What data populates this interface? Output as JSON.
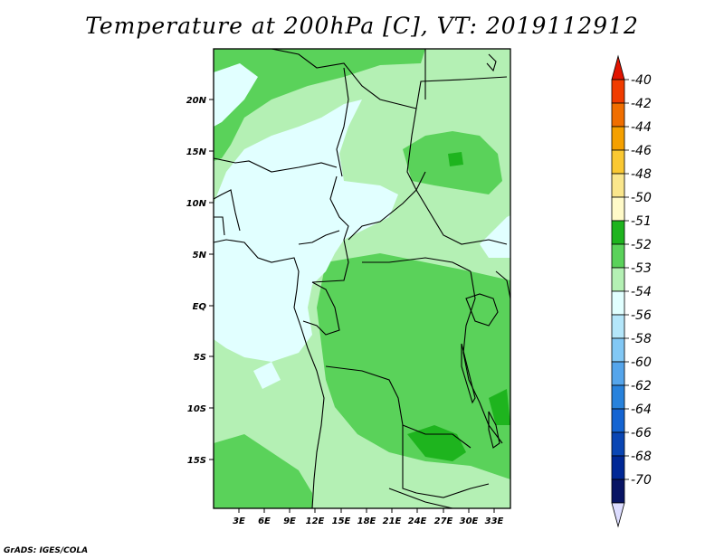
{
  "title": "Temperature at 200hPa [C], VT: 2019112912",
  "credit": "GrADS: IGES/COLA",
  "axes": {
    "lat_labels": [
      "20N",
      "15N",
      "10N",
      "5N",
      "EQ",
      "5S",
      "10S",
      "15S"
    ],
    "lon_labels": [
      "3E",
      "6E",
      "9E",
      "12E",
      "15E",
      "18E",
      "21E",
      "24E",
      "27E",
      "30E",
      "33E"
    ]
  },
  "colorbar": {
    "labels": [
      "-40",
      "-42",
      "-44",
      "-46",
      "-48",
      "-50",
      "-51",
      "-52",
      "-53",
      "-54",
      "-56",
      "-58",
      "-60",
      "-62",
      "-64",
      "-66",
      "-68",
      "-70"
    ],
    "colors": [
      "#e11400",
      "#f03c00",
      "#f06e00",
      "#f5a000",
      "#fac832",
      "#fae68c",
      "#fffac8",
      "#1eb41e",
      "#5ad25a",
      "#b4f0b4",
      "#e1ffff",
      "#b4e6fa",
      "#82c8f5",
      "#55a5eb",
      "#2882dc",
      "#1464d2",
      "#0a46b4",
      "#002896",
      "#081464",
      "#dcdcff"
    ]
  },
  "map_colors": {
    "c_minus54": "#e1ffff",
    "c_minus53": "#b4f0b4",
    "c_minus52": "#5ad25a",
    "c_minus51": "#1eb41e",
    "border": "#000000"
  }
}
